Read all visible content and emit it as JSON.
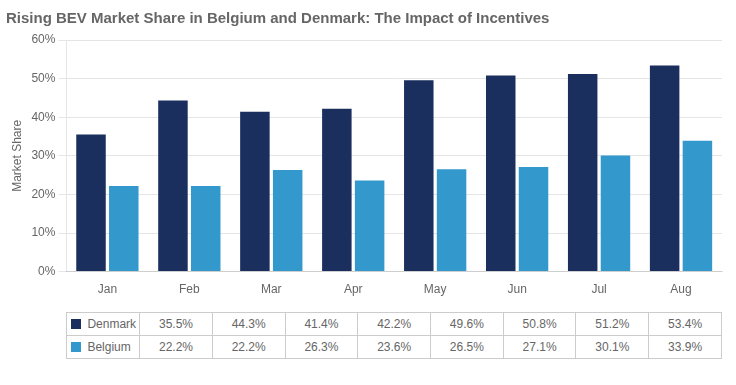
{
  "chart_data": {
    "type": "bar",
    "title": "Rising BEV Market Share in Belgium and Denmark: The Impact of Incentives",
    "y_label": "Market Share",
    "categories": [
      "Jan",
      "Feb",
      "Mar",
      "Apr",
      "May",
      "Jun",
      "Jul",
      "Aug"
    ],
    "series": [
      {
        "name": "Denmark",
        "color": "#1a2f5e",
        "values": [
          35.5,
          44.3,
          41.4,
          42.2,
          49.6,
          50.8,
          51.2,
          53.4
        ],
        "value_labels": [
          "35.5%",
          "44.3%",
          "41.4%",
          "42.2%",
          "49.6%",
          "50.8%",
          "51.2%",
          "53.4%"
        ]
      },
      {
        "name": "Belgium",
        "color": "#3399cc",
        "values": [
          22.2,
          22.2,
          26.3,
          23.6,
          26.5,
          27.1,
          30.1,
          33.9
        ],
        "value_labels": [
          "22.2%",
          "22.2%",
          "26.3%",
          "23.6%",
          "26.5%",
          "27.1%",
          "30.1%",
          "33.9%"
        ]
      }
    ],
    "ylim": [
      0,
      60
    ],
    "yticks": [
      {
        "value": 0,
        "label": "0%"
      },
      {
        "value": 10,
        "label": "10%"
      },
      {
        "value": 20,
        "label": "20%"
      },
      {
        "value": 30,
        "label": "30%"
      },
      {
        "value": 40,
        "label": "40%"
      },
      {
        "value": 50,
        "label": "50%"
      },
      {
        "value": 60,
        "label": "60%"
      }
    ],
    "grid": true
  }
}
